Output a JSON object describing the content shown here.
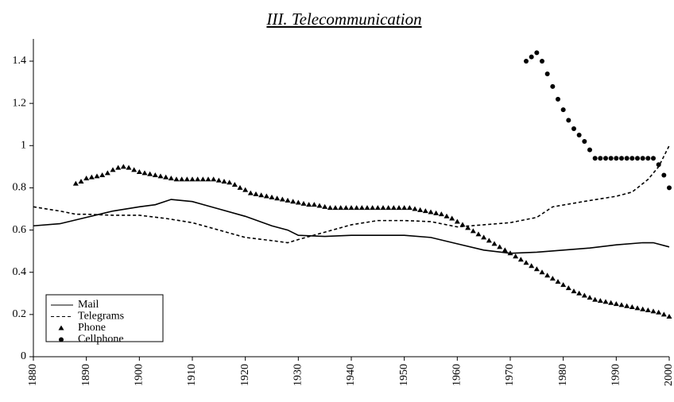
{
  "chart_data": {
    "type": "line",
    "title": "III. Telecommunication",
    "xlim": [
      1880,
      2000
    ],
    "xticks": [
      1880,
      1890,
      1900,
      1910,
      1920,
      1930,
      1940,
      1950,
      1960,
      1970,
      1980,
      1990,
      2000
    ],
    "ylim": [
      0,
      1.4
    ],
    "yticks": [
      0,
      0.2,
      0.4,
      0.6,
      0.8,
      1,
      1.2,
      1.4
    ],
    "grid": false,
    "legend": "lower left",
    "series": [
      {
        "name": "Mail",
        "color": "#000000",
        "style": "solid",
        "x": [
          1880,
          1885,
          1890,
          1895,
          1900,
          1903,
          1906,
          1910,
          1915,
          1920,
          1925,
          1928,
          1930,
          1935,
          1940,
          1945,
          1950,
          1955,
          1960,
          1965,
          1970,
          1975,
          1980,
          1985,
          1990,
          1995,
          1997,
          2000
        ],
        "values": [
          0.62,
          0.63,
          0.66,
          0.69,
          0.71,
          0.72,
          0.745,
          0.735,
          0.7,
          0.665,
          0.62,
          0.6,
          0.575,
          0.57,
          0.575,
          0.575,
          0.575,
          0.565,
          0.535,
          0.505,
          0.49,
          0.495,
          0.505,
          0.515,
          0.53,
          0.54,
          0.54,
          0.52
        ]
      },
      {
        "name": "Telegrams",
        "color": "#000000",
        "style": "dashed",
        "x": [
          1880,
          1885,
          1888,
          1890,
          1895,
          1900,
          1905,
          1910,
          1915,
          1920,
          1925,
          1928,
          1930,
          1935,
          1940,
          1945,
          1950,
          1955,
          1960,
          1965,
          1970,
          1975,
          1978,
          1985,
          1990,
          1993,
          1996,
          1998,
          2000
        ],
        "values": [
          0.71,
          0.69,
          0.675,
          0.675,
          0.67,
          0.67,
          0.655,
          0.635,
          0.6,
          0.565,
          0.55,
          0.54,
          0.555,
          0.59,
          0.625,
          0.645,
          0.645,
          0.64,
          0.615,
          0.625,
          0.635,
          0.66,
          0.71,
          0.74,
          0.76,
          0.78,
          0.84,
          0.9,
          1.0
        ]
      },
      {
        "name": "Phone",
        "color": "#000000",
        "style": "triangle",
        "x": [
          1888,
          1889,
          1890,
          1891,
          1892,
          1893,
          1894,
          1895,
          1896,
          1897,
          1898,
          1899,
          1900,
          1901,
          1902,
          1903,
          1904,
          1905,
          1906,
          1907,
          1908,
          1909,
          1910,
          1911,
          1912,
          1913,
          1914,
          1915,
          1916,
          1917,
          1918,
          1919,
          1920,
          1921,
          1922,
          1923,
          1924,
          1925,
          1926,
          1927,
          1928,
          1929,
          1930,
          1931,
          1932,
          1933,
          1934,
          1935,
          1936,
          1937,
          1938,
          1939,
          1940,
          1941,
          1942,
          1943,
          1944,
          1945,
          1946,
          1947,
          1948,
          1949,
          1950,
          1951,
          1952,
          1953,
          1954,
          1955,
          1956,
          1957,
          1958,
          1959,
          1960,
          1961,
          1962,
          1963,
          1964,
          1965,
          1966,
          1967,
          1968,
          1969,
          1970,
          1971,
          1972,
          1973,
          1974,
          1975,
          1976,
          1977,
          1978,
          1979,
          1980,
          1981,
          1982,
          1983,
          1984,
          1985,
          1986,
          1987,
          1988,
          1989,
          1990,
          1991,
          1992,
          1993,
          1994,
          1995,
          1996,
          1997,
          1998,
          1999,
          2000
        ],
        "values": [
          0.82,
          0.83,
          0.845,
          0.85,
          0.855,
          0.86,
          0.87,
          0.885,
          0.895,
          0.9,
          0.895,
          0.885,
          0.875,
          0.87,
          0.865,
          0.86,
          0.855,
          0.85,
          0.845,
          0.84,
          0.84,
          0.84,
          0.84,
          0.84,
          0.84,
          0.84,
          0.84,
          0.835,
          0.83,
          0.825,
          0.815,
          0.8,
          0.79,
          0.775,
          0.77,
          0.765,
          0.76,
          0.755,
          0.75,
          0.745,
          0.74,
          0.735,
          0.73,
          0.725,
          0.72,
          0.72,
          0.715,
          0.71,
          0.705,
          0.705,
          0.705,
          0.705,
          0.705,
          0.705,
          0.705,
          0.705,
          0.705,
          0.705,
          0.705,
          0.705,
          0.705,
          0.705,
          0.705,
          0.705,
          0.7,
          0.695,
          0.69,
          0.685,
          0.68,
          0.675,
          0.665,
          0.655,
          0.64,
          0.625,
          0.61,
          0.595,
          0.58,
          0.565,
          0.55,
          0.535,
          0.52,
          0.505,
          0.49,
          0.475,
          0.46,
          0.445,
          0.43,
          0.415,
          0.4,
          0.385,
          0.37,
          0.355,
          0.34,
          0.325,
          0.31,
          0.3,
          0.29,
          0.28,
          0.27,
          0.265,
          0.26,
          0.255,
          0.25,
          0.245,
          0.24,
          0.235,
          0.23,
          0.225,
          0.22,
          0.215,
          0.21,
          0.2,
          0.19
        ]
      },
      {
        "name": "Cellphone",
        "color": "#000000",
        "style": "circle",
        "x": [
          1973,
          1974,
          1975,
          1976,
          1977,
          1978,
          1979,
          1980,
          1981,
          1982,
          1983,
          1984,
          1985,
          1986,
          1987,
          1988,
          1989,
          1990,
          1991,
          1992,
          1993,
          1994,
          1995,
          1996,
          1997,
          1998,
          1999,
          2000
        ],
        "values": [
          1.4,
          1.42,
          1.44,
          1.4,
          1.34,
          1.28,
          1.22,
          1.17,
          1.12,
          1.08,
          1.05,
          1.02,
          0.98,
          0.94,
          0.94,
          0.94,
          0.94,
          0.94,
          0.94,
          0.94,
          0.94,
          0.94,
          0.94,
          0.94,
          0.94,
          0.91,
          0.86,
          0.8
        ]
      }
    ]
  }
}
